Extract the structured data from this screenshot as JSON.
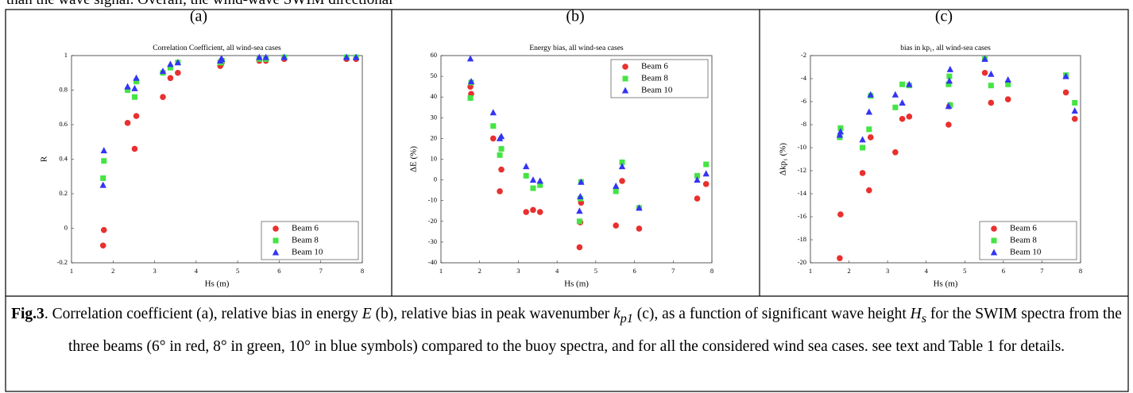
{
  "top_text": "than the wave signal. Overall, the wind-wave SWIM directional",
  "panels": [
    "(a)",
    "(b)",
    "(c)"
  ],
  "chart_data": [
    {
      "type": "scatter",
      "title": "Correlation Coefficient, all wind-sea cases",
      "xlabel": "Hs (m)",
      "ylabel": "R",
      "xlim": [
        1,
        8
      ],
      "xticks": [
        1,
        2,
        3,
        4,
        5,
        6,
        7,
        8
      ],
      "ylim": [
        -0.2,
        1
      ],
      "yticks": [
        -0.2,
        0,
        0.2,
        0.4,
        0.6,
        0.8,
        1
      ],
      "grid": false,
      "legend": "lower right",
      "x": [
        1.76,
        1.78,
        2.35,
        2.52,
        2.56,
        3.2,
        3.38,
        3.56,
        4.58,
        4.6,
        4.62,
        5.52,
        5.68,
        6.12,
        7.62,
        7.85
      ],
      "series": [
        {
          "name": "Beam 6",
          "color": "#e8302f",
          "marker": "circle",
          "values": [
            -0.1,
            -0.01,
            0.61,
            0.46,
            0.65,
            0.76,
            0.87,
            0.9,
            0.94,
            0.95,
            0.96,
            0.97,
            0.97,
            0.98,
            0.98,
            0.98
          ]
        },
        {
          "name": "Beam 8",
          "color": "#44e444",
          "marker": "square",
          "values": [
            0.29,
            0.39,
            0.8,
            0.76,
            0.85,
            0.9,
            0.93,
            0.96,
            0.96,
            0.96,
            0.97,
            0.98,
            0.98,
            0.99,
            0.99,
            0.99
          ]
        },
        {
          "name": "Beam 10",
          "color": "#3434f4",
          "marker": "triangle",
          "values": [
            0.25,
            0.45,
            0.82,
            0.81,
            0.87,
            0.91,
            0.95,
            0.96,
            0.97,
            0.98,
            0.98,
            0.99,
            0.99,
            0.99,
            0.99,
            0.99
          ]
        }
      ]
    },
    {
      "type": "scatter",
      "title": "Energy bias, all wind-sea cases",
      "xlabel": "Hs (m)",
      "ylabel": "ΔE (%)",
      "xlim": [
        1,
        8
      ],
      "xticks": [
        1,
        2,
        3,
        4,
        5,
        6,
        7,
        8
      ],
      "ylim": [
        -40,
        60
      ],
      "yticks": [
        -40,
        -30,
        -20,
        -10,
        0,
        10,
        20,
        30,
        40,
        50,
        60
      ],
      "grid": false,
      "legend": "upper right",
      "x": [
        1.76,
        1.78,
        2.35,
        2.52,
        2.56,
        3.2,
        3.38,
        3.56,
        4.58,
        4.6,
        4.62,
        5.52,
        5.68,
        6.12,
        7.62,
        7.85
      ],
      "series": [
        {
          "name": "Beam 6",
          "color": "#e8302f",
          "marker": "circle",
          "values": [
            45,
            41.5,
            20,
            -5.5,
            5,
            -15.5,
            -14.5,
            -15.5,
            -32.5,
            -20.5,
            -11,
            -22,
            -0.5,
            -23.5,
            -9,
            -2
          ]
        },
        {
          "name": "Beam 8",
          "color": "#44e444",
          "marker": "square",
          "values": [
            39.5,
            47,
            26,
            12,
            15,
            2,
            -4,
            -2.5,
            -20,
            -9,
            -1,
            -5.5,
            8.5,
            -13.5,
            2,
            7.5
          ]
        },
        {
          "name": "Beam 10",
          "color": "#3434f4",
          "marker": "triangle",
          "values": [
            58.5,
            47.5,
            32.5,
            20,
            21,
            6.5,
            0,
            -0.5,
            -15,
            -8,
            -1,
            -3,
            6.5,
            -13.5,
            0,
            3
          ]
        }
      ]
    },
    {
      "type": "scatter",
      "title": "bias in kp₁, all wind-sea cases",
      "xlabel": "Hs (m)",
      "ylabel": "Δkp₁ (%)",
      "xlim": [
        1,
        8
      ],
      "xticks": [
        1,
        2,
        3,
        4,
        5,
        6,
        7,
        8
      ],
      "ylim": [
        -20,
        -2
      ],
      "yticks": [
        -20,
        -18,
        -16,
        -14,
        -12,
        -10,
        -8,
        -6,
        -4,
        -2
      ],
      "grid": false,
      "legend": "lower right",
      "x": [
        1.76,
        1.78,
        2.35,
        2.52,
        2.56,
        3.2,
        3.38,
        3.56,
        4.58,
        4.6,
        4.62,
        5.52,
        5.68,
        6.12,
        7.62,
        7.85
      ],
      "series": [
        {
          "name": "Beam 6",
          "color": "#e8302f",
          "marker": "circle",
          "values": [
            -19.6,
            -15.8,
            -12.2,
            -13.7,
            -9.1,
            -10.4,
            -7.5,
            -7.3,
            -8,
            -6.4,
            -6.3,
            -3.5,
            -6.1,
            -5.8,
            -5.2,
            -7.5
          ]
        },
        {
          "name": "Beam 8",
          "color": "#44e444",
          "marker": "square",
          "values": [
            -9.1,
            -8.3,
            -10,
            -8.4,
            -5.5,
            -6.5,
            -4.5,
            -4.6,
            -4.5,
            -3.8,
            -6.3,
            -2.3,
            -4.6,
            -4.5,
            -3.7,
            -6.1
          ]
        },
        {
          "name": "Beam 10",
          "color": "#3434f4",
          "marker": "triangle",
          "values": [
            -8.9,
            -8.6,
            -9.3,
            -6.9,
            -5.4,
            -5.4,
            -6.1,
            -4.5,
            -6.4,
            -4.2,
            -3.2,
            -2.3,
            -3.6,
            -4.1,
            -3.8,
            -6.8
          ]
        }
      ]
    }
  ],
  "caption": [
    "Fig.3",
    ". Correlation coefficient (a), relative bias in energy ",
    "E",
    " (b), relative bias in peak wavenumber ",
    "k",
    "p1",
    " (c), as a function of significant wave height ",
    "H",
    "s",
    " for the SWIM spectra from the three beams (6° in red, 8° in green, 10° in blue symbols) compared to the buoy spectra, and for all the considered wind sea cases. see text and Table 1 for details."
  ]
}
